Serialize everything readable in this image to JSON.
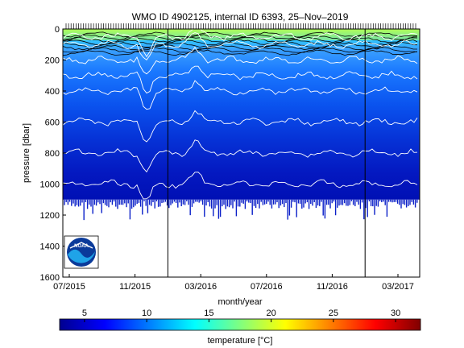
{
  "chart_data": {
    "type": "heatmap",
    "title": "WMO ID 4902125, internal ID 6393, 25–Nov–2019",
    "xlabel": "month/year",
    "ylabel": "pressure [dbar]",
    "colorbar_label": "temperature [°C]",
    "x_ticks": [
      "07/2015",
      "11/2015",
      "03/2016",
      "07/2016",
      "11/2016",
      "03/2017"
    ],
    "y_ticks": [
      0,
      200,
      400,
      600,
      800,
      1000,
      1200,
      1400,
      1600
    ],
    "ylim": [
      0,
      1600
    ],
    "y_reversed": true,
    "colorbar_ticks": [
      5,
      10,
      15,
      20,
      25,
      30
    ],
    "colorbar_range": [
      3,
      32
    ],
    "colormap": "jet",
    "grid": false,
    "contour_color": "#ffffff",
    "profile_max_depth_dbar": 1100,
    "vertical_markers": [
      "01/2016",
      "01/2017"
    ],
    "temperature_profile": [
      {
        "pressure": 0,
        "temperature": 18
      },
      {
        "pressure": 50,
        "temperature": 14
      },
      {
        "pressure": 100,
        "temperature": 12
      },
      {
        "pressure": 200,
        "temperature": 9
      },
      {
        "pressure": 300,
        "temperature": 8
      },
      {
        "pressure": 400,
        "temperature": 7
      },
      {
        "pressure": 600,
        "temperature": 6
      },
      {
        "pressure": 800,
        "temperature": 5
      },
      {
        "pressure": 1000,
        "temperature": 4
      },
      {
        "pressure": 1100,
        "temperature": 4
      }
    ]
  },
  "logo": {
    "icon": "noaa-logo-icon",
    "text": "NOAA"
  }
}
